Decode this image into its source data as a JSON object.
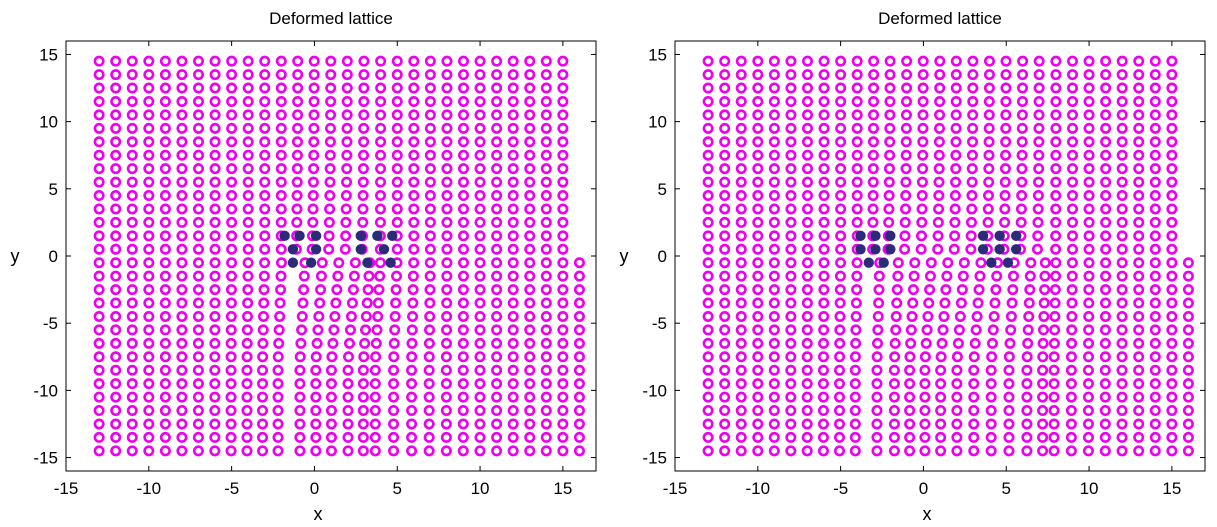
{
  "colors": {
    "lattice_ring": "#ee00ee",
    "lattice_center": "#ffffff",
    "core_atom": "#2b2b7a",
    "axes": "#000000"
  },
  "chart_data": [
    {
      "type": "scatter",
      "title": "Deformed lattice",
      "xlabel": "x",
      "ylabel": "y",
      "xlim": [
        -15,
        17
      ],
      "ylim": [
        -16,
        16
      ],
      "xticks": [
        -15,
        -10,
        -5,
        0,
        5,
        10,
        15
      ],
      "yticks": [
        -15,
        -10,
        -5,
        0,
        5,
        10,
        15
      ],
      "lattice": {
        "spacing": 1,
        "upper_half": {
          "x_from": -13,
          "x_to": 15,
          "y_from": 0.5,
          "y_to": 14.5
        },
        "lower_half": {
          "x_from": -13,
          "x_to": 16.4,
          "y_from": -14.5,
          "y_to": -0.5
        },
        "edge_x": 15.5,
        "slip_region": [
          -2.2,
          2.5
        ],
        "wedge_start": 1.5,
        "wedge_extent": 4
      },
      "series": [
        {
          "marker": "open-circle",
          "values": "lattice"
        },
        {
          "marker": "filled-circle",
          "points": [
            [
              -1.8,
              1.5
            ],
            [
              -0.9,
              1.5
            ],
            [
              0.1,
              1.5
            ],
            [
              -1.3,
              0.5
            ],
            [
              0.1,
              0.5
            ],
            [
              -1.3,
              -0.5
            ],
            [
              -0.2,
              -0.5
            ],
            [
              2.8,
              1.5
            ],
            [
              3.8,
              1.5
            ],
            [
              4.7,
              1.5
            ],
            [
              2.8,
              0.5
            ],
            [
              4.2,
              0.5
            ],
            [
              3.2,
              -0.5
            ],
            [
              4.6,
              -0.5
            ]
          ]
        }
      ]
    },
    {
      "type": "scatter",
      "title": "Deformed lattice",
      "xlabel": "x",
      "ylabel": "y",
      "xlim": [
        -15,
        17
      ],
      "ylim": [
        -16,
        16
      ],
      "xticks": [
        -15,
        -10,
        -5,
        0,
        5,
        10,
        15
      ],
      "yticks": [
        -15,
        -10,
        -5,
        0,
        5,
        10,
        15
      ],
      "lattice": {
        "spacing": 1,
        "upper_half": {
          "x_from": -13,
          "x_to": 15,
          "y_from": 0.5,
          "y_to": 14.5
        },
        "lower_half": {
          "x_from": -13,
          "x_to": 16.4,
          "y_from": -14.5,
          "y_to": -0.5
        },
        "edge_x": 15.5,
        "slip_region": [
          -4,
          6.5
        ],
        "wedge_start": 2,
        "wedge_extent": 5
      },
      "series": [
        {
          "marker": "open-circle",
          "values": "lattice"
        },
        {
          "marker": "filled-circle",
          "points": [
            [
              -3.8,
              1.5
            ],
            [
              -2.9,
              1.5
            ],
            [
              -2.0,
              1.5
            ],
            [
              -3.8,
              0.5
            ],
            [
              -2.9,
              0.5
            ],
            [
              -2.0,
              0.5
            ],
            [
              -3.3,
              -0.5
            ],
            [
              -2.4,
              -0.5
            ],
            [
              3.6,
              1.5
            ],
            [
              4.6,
              1.5
            ],
            [
              5.6,
              1.5
            ],
            [
              3.6,
              0.5
            ],
            [
              4.6,
              0.5
            ],
            [
              5.6,
              0.5
            ],
            [
              4.1,
              -0.5
            ],
            [
              5.1,
              -0.5
            ]
          ]
        }
      ]
    }
  ]
}
